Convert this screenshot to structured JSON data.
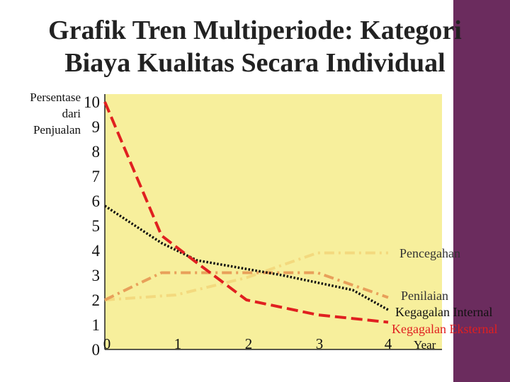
{
  "slide": {
    "title_line1": "Grafik Tren Multiperiode: Kategori",
    "title_line2": "Biaya Kualitas Secara Individual"
  },
  "colors": {
    "plot_background": "#f7ef9c",
    "side_bar": "#6b2c5e"
  },
  "chart_data": {
    "type": "line",
    "ylabel_lines": [
      "Persentase",
      "dari",
      "Penjualan"
    ],
    "xlabel": "Year",
    "xlim": [
      0,
      4.2
    ],
    "ylim": [
      0,
      10
    ],
    "x_ticks": [
      0,
      1,
      2,
      3,
      4
    ],
    "y_ticks": [
      0,
      1,
      2,
      3,
      4,
      5,
      6,
      7,
      8,
      9,
      10
    ],
    "grid": false,
    "series": [
      {
        "name": "Pencegahan",
        "color": "#f3d97e",
        "dash": "dashdot",
        "x": [
          0,
          1,
          2,
          3,
          4
        ],
        "y": [
          2,
          2.2,
          2.9,
          3.9,
          3.9
        ]
      },
      {
        "name": "Penilaian",
        "color": "#e8a05a",
        "dash": "dashdot",
        "x": [
          0,
          0.8,
          3,
          4
        ],
        "y": [
          2,
          3.1,
          3.1,
          2.1
        ]
      },
      {
        "name": "Kegagalan Internal",
        "color": "#111111",
        "dash": "dotted",
        "x": [
          0,
          0.8,
          1.3,
          2.5,
          3.5,
          4
        ],
        "y": [
          5.8,
          4.3,
          3.6,
          3.0,
          2.4,
          1.6
        ]
      },
      {
        "name": "Kegagalan Eksternal",
        "color": "#e02020",
        "dash": "dashed",
        "x": [
          0,
          0.8,
          1.3,
          2,
          3,
          4
        ],
        "y": [
          10,
          4.6,
          3.5,
          2.0,
          1.4,
          1.1
        ]
      }
    ],
    "legend_labels": {
      "pencegahan": "Pencegahan",
      "penilaian": "Penilaian",
      "internal": "Kegagalan Internal",
      "external_word1": "Kegagalan",
      "external_word2": "Eksternal"
    }
  }
}
